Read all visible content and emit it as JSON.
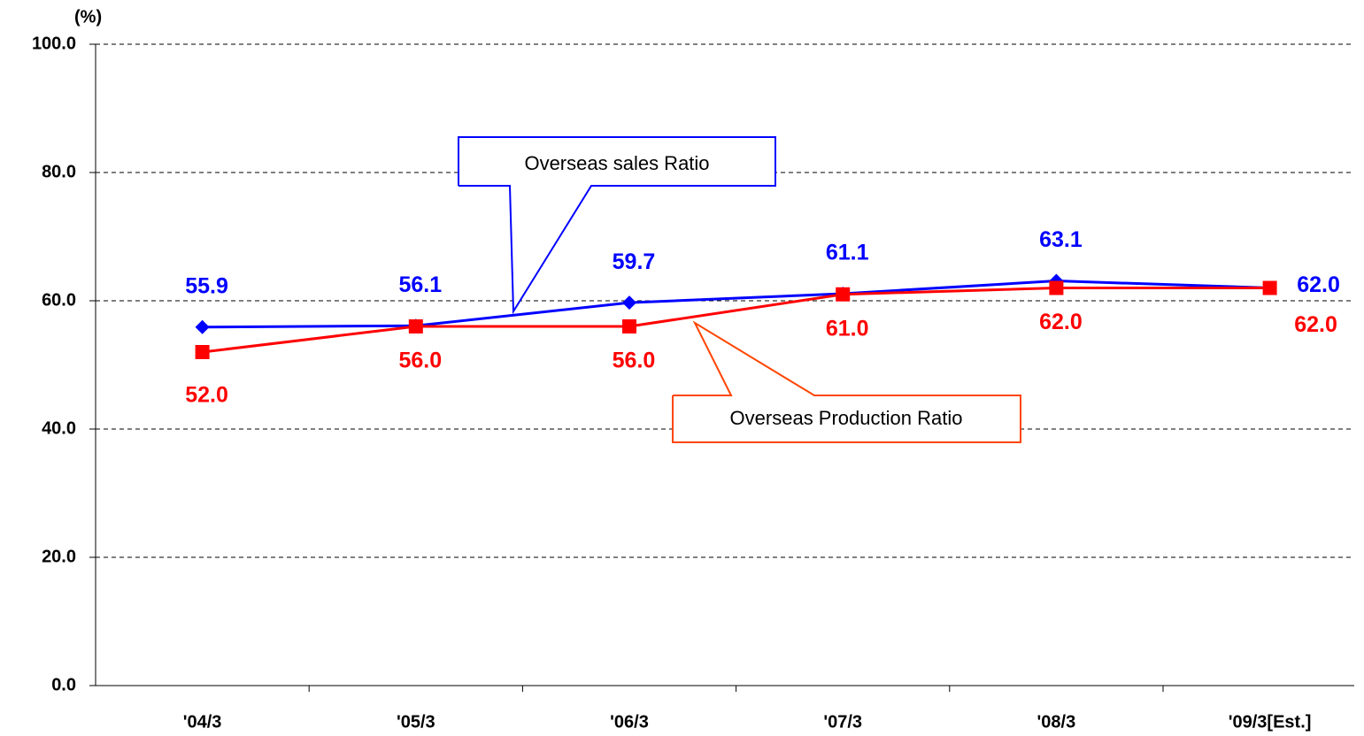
{
  "chart_data": {
    "type": "line",
    "y_unit_label": "(%)",
    "categories": [
      "'04/3",
      "'05/3",
      "'06/3",
      "'07/3",
      "'08/3",
      "'09/3[Est.]"
    ],
    "series": [
      {
        "name": "Overseas sales Ratio",
        "color": "#0000ff",
        "marker": "diamond",
        "values": [
          55.9,
          56.1,
          59.7,
          61.1,
          63.1,
          62.0
        ],
        "value_labels": [
          "55.9",
          "56.1",
          "59.7",
          "61.1",
          "63.1",
          "62.0"
        ]
      },
      {
        "name": "Overseas Production Ratio",
        "color": "#ff0000",
        "marker": "square",
        "values": [
          52.0,
          56.0,
          56.0,
          61.0,
          62.0,
          62.0
        ],
        "value_labels": [
          "52.0",
          "56.0",
          "56.0",
          "61.0",
          "62.0",
          "62.0"
        ]
      }
    ],
    "ylim": [
      0,
      100
    ],
    "yticks": [
      {
        "value": 0,
        "label": "0.0"
      },
      {
        "value": 20,
        "label": "20.0"
      },
      {
        "value": 40,
        "label": "40.0"
      },
      {
        "value": 60,
        "label": "60.0"
      },
      {
        "value": 80,
        "label": "80.0"
      },
      {
        "value": 100,
        "label": "100.0"
      }
    ],
    "grid": true
  }
}
